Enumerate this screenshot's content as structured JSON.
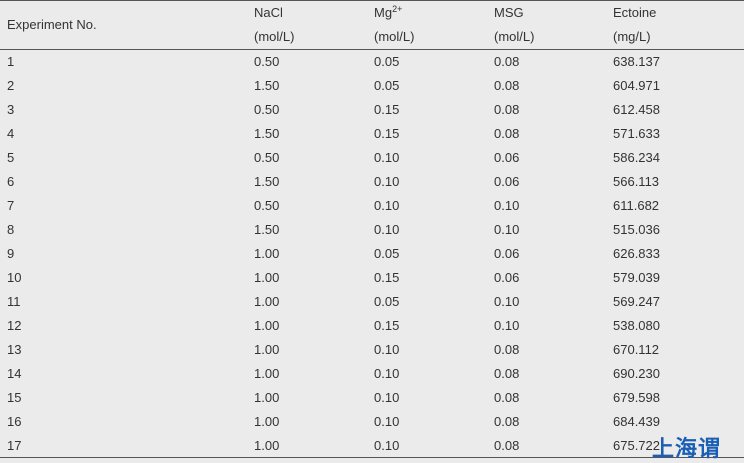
{
  "table": {
    "header": {
      "col0": "Experiment No.",
      "col1": {
        "name": "NaCl",
        "unit": "(mol/L)"
      },
      "col2": {
        "name": "Mg",
        "sup": "2+",
        "unit": "(mol/L)"
      },
      "col3": {
        "name": "MSG",
        "unit": "(mol/L)"
      },
      "col4": {
        "name": "Ectoine",
        "unit": "(mg/L)"
      }
    },
    "rows": [
      [
        "1",
        "0.50",
        "0.05",
        "0.08",
        "638.137"
      ],
      [
        "2",
        "1.50",
        "0.05",
        "0.08",
        "604.971"
      ],
      [
        "3",
        "0.50",
        "0.15",
        "0.08",
        "612.458"
      ],
      [
        "4",
        "1.50",
        "0.15",
        "0.08",
        "571.633"
      ],
      [
        "5",
        "0.50",
        "0.10",
        "0.06",
        "586.234"
      ],
      [
        "6",
        "1.50",
        "0.10",
        "0.06",
        "566.113"
      ],
      [
        "7",
        "0.50",
        "0.10",
        "0.10",
        "611.682"
      ],
      [
        "8",
        "1.50",
        "0.10",
        "0.10",
        "515.036"
      ],
      [
        "9",
        "1.00",
        "0.05",
        "0.06",
        "626.833"
      ],
      [
        "10",
        "1.00",
        "0.15",
        "0.06",
        "579.039"
      ],
      [
        "11",
        "1.00",
        "0.05",
        "0.10",
        "569.247"
      ],
      [
        "12",
        "1.00",
        "0.15",
        "0.10",
        "538.080"
      ],
      [
        "13",
        "1.00",
        "0.10",
        "0.08",
        "670.112"
      ],
      [
        "14",
        "1.00",
        "0.10",
        "0.08",
        "690.230"
      ],
      [
        "15",
        "1.00",
        "0.10",
        "0.08",
        "679.598"
      ],
      [
        "16",
        "1.00",
        "0.10",
        "0.08",
        "684.439"
      ],
      [
        "17",
        "1.00",
        "0.10",
        "0.08",
        "675.722"
      ]
    ]
  },
  "watermark": "上海谓"
}
